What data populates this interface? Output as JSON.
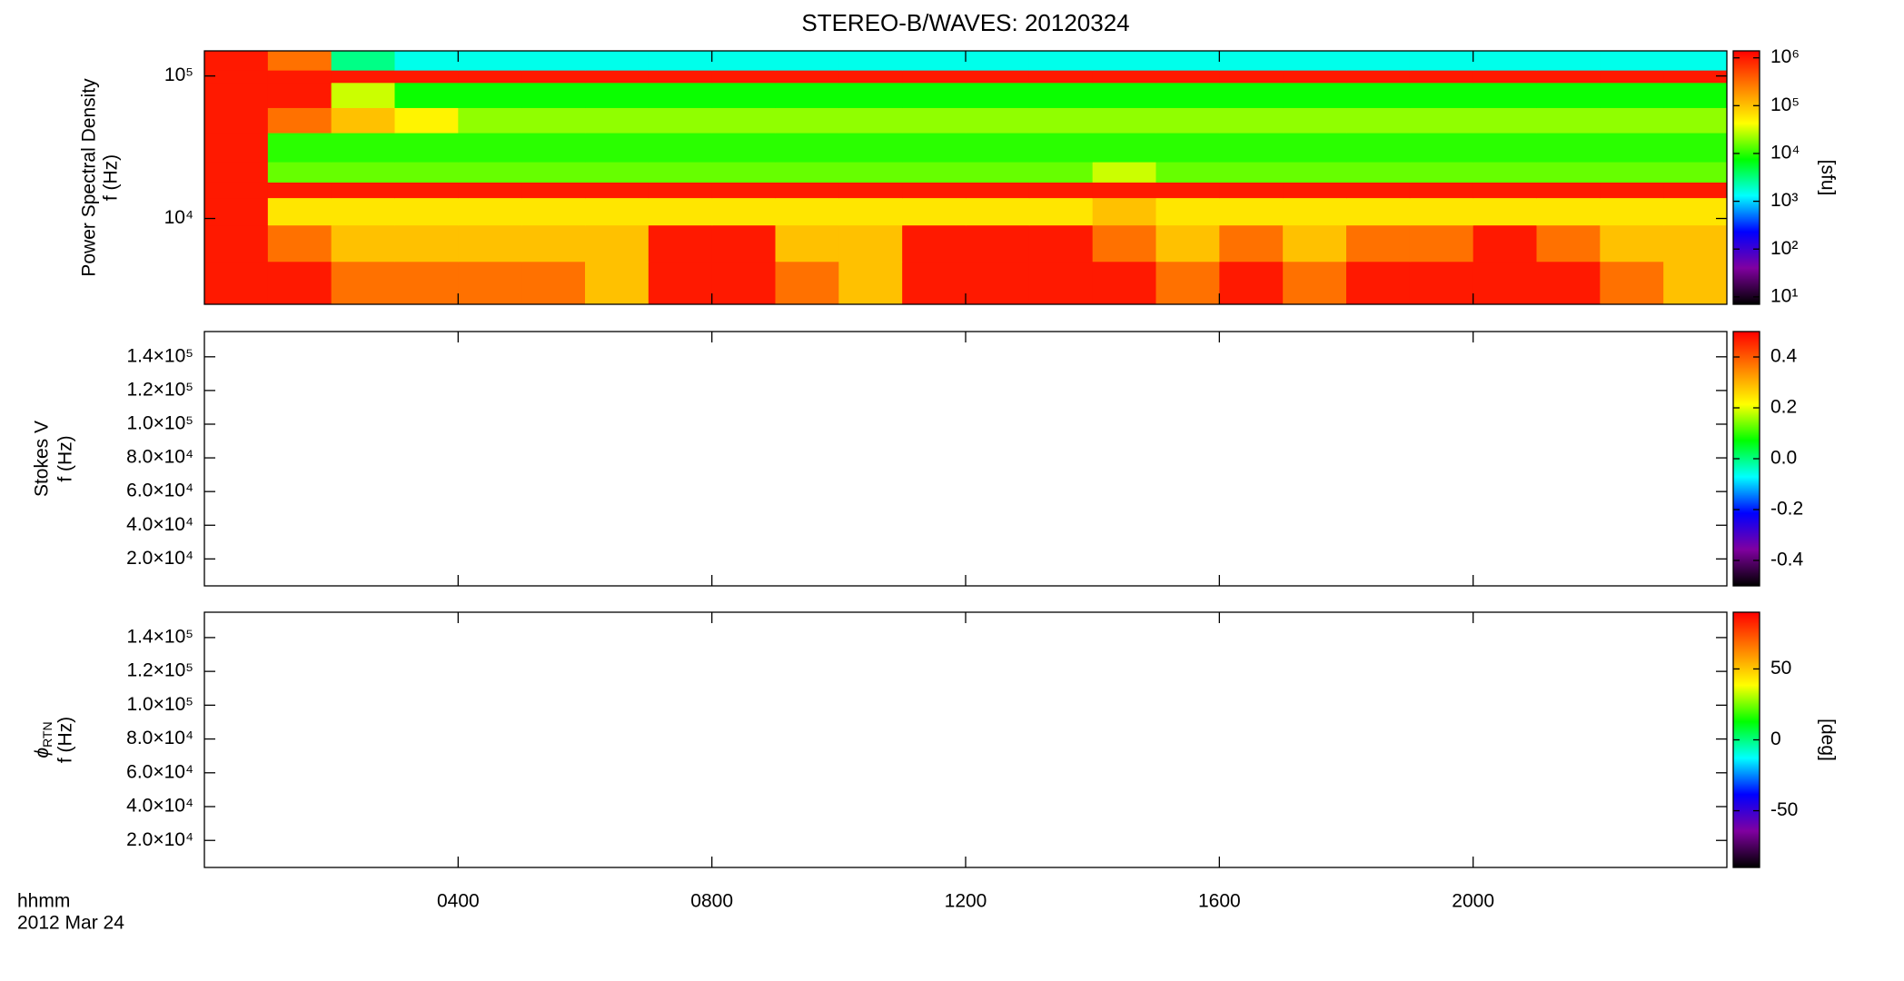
{
  "chart_data": [
    {
      "type": "heatmap",
      "title": "STEREO-B/WAVES: 20120324",
      "ylabel": [
        "Power Spectral Density",
        "f (Hz)"
      ],
      "ylog": true,
      "xlim": [
        0,
        24
      ],
      "ylim": [
        2500,
        150000
      ],
      "yticks": [
        {
          "value": 10000,
          "label": "10⁴"
        },
        {
          "value": 100000,
          "label": "10⁵"
        }
      ],
      "xbins": [
        0,
        1,
        2,
        3,
        4,
        5,
        6,
        7,
        8,
        9,
        10,
        11,
        12,
        13,
        14,
        15,
        16,
        17,
        18,
        19,
        20,
        21,
        22,
        23,
        24
      ],
      "ybins": [
        2500,
        5000,
        9000,
        14000,
        18000,
        25000,
        40000,
        60000,
        90000,
        110000,
        150000
      ],
      "z": [
        [
          1000000,
          1000000,
          300000,
          300000,
          300000,
          300000,
          100000,
          1000000,
          1000000,
          300000,
          100000,
          1000000,
          1000000,
          1000000,
          1000000,
          300000,
          1000000,
          300000,
          1000000,
          1000000,
          1000000,
          1000000,
          300000,
          100000
        ],
        [
          1000000,
          300000,
          100000,
          100000,
          100000,
          100000,
          100000,
          1000000,
          1000000,
          100000,
          100000,
          1000000,
          1000000,
          1000000,
          300000,
          100000,
          300000,
          100000,
          300000,
          300000,
          1000000,
          300000,
          100000,
          100000
        ],
        [
          1000000,
          60000,
          60000,
          60000,
          60000,
          60000,
          60000,
          60000,
          60000,
          60000,
          60000,
          60000,
          60000,
          60000,
          100000,
          60000,
          60000,
          60000,
          60000,
          60000,
          60000,
          60000,
          60000,
          60000
        ],
        [
          1000000,
          1000000,
          1000000,
          1000000,
          1000000,
          1000000,
          1000000,
          1000000,
          1000000,
          1000000,
          1000000,
          1000000,
          1000000,
          1000000,
          1000000,
          1000000,
          1000000,
          1000000,
          1000000,
          1000000,
          1000000,
          1000000,
          1000000,
          1000000
        ],
        [
          1000000,
          15000,
          15000,
          15000,
          15000,
          15000,
          15000,
          15000,
          15000,
          15000,
          15000,
          15000,
          15000,
          15000,
          30000,
          15000,
          15000,
          15000,
          15000,
          15000,
          15000,
          15000,
          15000,
          15000
        ],
        [
          1000000,
          10000,
          10000,
          10000,
          10000,
          10000,
          10000,
          10000,
          10000,
          10000,
          10000,
          10000,
          10000,
          10000,
          10000,
          10000,
          10000,
          10000,
          10000,
          10000,
          10000,
          10000,
          10000,
          10000
        ],
        [
          1000000,
          300000,
          100000,
          50000,
          20000,
          20000,
          20000,
          20000,
          20000,
          20000,
          20000,
          20000,
          20000,
          20000,
          20000,
          20000,
          20000,
          20000,
          20000,
          20000,
          20000,
          20000,
          20000,
          20000
        ],
        [
          1000000,
          1000000,
          30000,
          8000,
          8000,
          8000,
          8000,
          8000,
          8000,
          8000,
          8000,
          8000,
          8000,
          8000,
          8000,
          8000,
          8000,
          8000,
          8000,
          8000,
          8000,
          8000,
          8000,
          8000
        ],
        [
          1000000,
          1000000,
          1000000,
          1000000,
          1000000,
          1000000,
          1000000,
          1000000,
          1000000,
          1000000,
          1000000,
          1000000,
          1000000,
          1000000,
          1000000,
          1000000,
          1000000,
          1000000,
          1000000,
          1000000,
          1000000,
          1000000,
          1000000,
          1000000
        ],
        [
          1000000,
          300000,
          3000,
          1500,
          1500,
          1500,
          1500,
          1500,
          1500,
          1500,
          1500,
          1500,
          1500,
          1500,
          1500,
          1500,
          1500,
          1500,
          1500,
          1500,
          1500,
          1500,
          1500,
          1500
        ]
      ],
      "colormap": [
        "#000000",
        "#8000a0",
        "#0000ff",
        "#00ffff",
        "#00ff00",
        "#ffff00",
        "#ff8000",
        "#ff0000"
      ],
      "clog": true,
      "clim": [
        7,
        1400000
      ],
      "cticks": [
        {
          "value": 10,
          "label": "10¹"
        },
        {
          "value": 100,
          "label": "10²"
        },
        {
          "value": 1000,
          "label": "10³"
        },
        {
          "value": 10000,
          "label": "10⁴"
        },
        {
          "value": 100000,
          "label": "10⁵"
        },
        {
          "value": 1000000,
          "label": "10⁶"
        }
      ],
      "colorbar_label": "[sfu]"
    },
    {
      "type": "heatmap",
      "ylabel": [
        "Stokes V",
        "f (Hz)"
      ],
      "xlim": [
        0,
        24
      ],
      "ylim": [
        4000,
        155000
      ],
      "yticks": [
        {
          "value": 20000,
          "label": "2.0×10⁴"
        },
        {
          "value": 40000,
          "label": "4.0×10⁴"
        },
        {
          "value": 60000,
          "label": "6.0×10⁴"
        },
        {
          "value": 80000,
          "label": "8.0×10⁴"
        },
        {
          "value": 100000,
          "label": "1.0×10⁵"
        },
        {
          "value": 120000,
          "label": "1.2×10⁵"
        },
        {
          "value": 140000,
          "label": "1.4×10⁵"
        }
      ],
      "colormap": [
        "#000000",
        "#8000a0",
        "#0000ff",
        "#00ffff",
        "#00ff00",
        "#ffff00",
        "#ff8000",
        "#ff0000"
      ],
      "clim": [
        -0.5,
        0.5
      ],
      "cticks": [
        -0.4,
        -0.2,
        {
          "value": 0,
          "label": "0.0"
        },
        0.2,
        0.4
      ]
    },
    {
      "type": "heatmap",
      "ylabel": [
        {
          "symbol": "ϕ",
          "subscript": "RTN"
        },
        "f (Hz)"
      ],
      "xlim": [
        0,
        24
      ],
      "ylim": [
        4000,
        155000
      ],
      "yticks": [
        {
          "value": 20000,
          "label": "2.0×10⁴"
        },
        {
          "value": 40000,
          "label": "4.0×10⁴"
        },
        {
          "value": 60000,
          "label": "6.0×10⁴"
        },
        {
          "value": 80000,
          "label": "8.0×10⁴"
        },
        {
          "value": 100000,
          "label": "1.0×10⁵"
        },
        {
          "value": 120000,
          "label": "1.2×10⁵"
        },
        {
          "value": 140000,
          "label": "1.4×10⁵"
        }
      ],
      "xticks": [
        {
          "value": 4,
          "label": "0400"
        },
        {
          "value": 8,
          "label": "0800"
        },
        {
          "value": 12,
          "label": "1200"
        },
        {
          "value": 16,
          "label": "1600"
        },
        {
          "value": 20,
          "label": "2000"
        }
      ],
      "xlabel": "hhmm",
      "date_label": "2012 Mar 24",
      "colormap": [
        "#000000",
        "#8000a0",
        "#0000ff",
        "#00ffff",
        "#00ff00",
        "#ffff00",
        "#ff8000",
        "#ff0000"
      ],
      "clim": [
        -90,
        90
      ],
      "cticks": [
        -50,
        0,
        50
      ],
      "colorbar_label": "[deg]"
    }
  ]
}
